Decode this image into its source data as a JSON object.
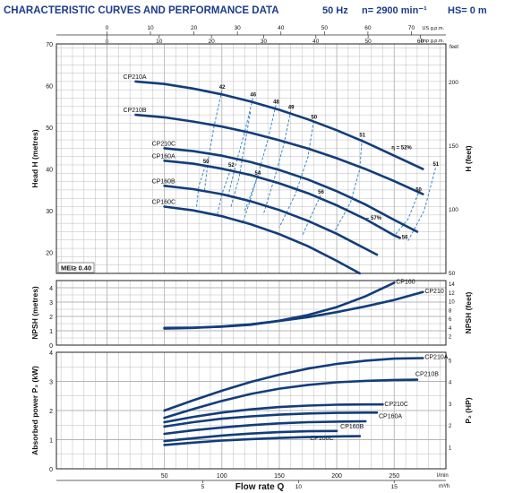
{
  "header": {
    "title": "CHARACTERISTIC CURVES AND PERFORMANCE DATA",
    "freq": "50 Hz",
    "speed": "n= 2900 min⁻¹",
    "hs": "HS= 0 m"
  },
  "colors": {
    "curve": "#123d7a",
    "eff": "#3a86c8",
    "grid": "#b5b5b5",
    "title": "#1d3c8a"
  },
  "top_scales": {
    "us_label": "US g.p.m.",
    "us_ticks": [
      "0",
      "10",
      "20",
      "30",
      "40",
      "50",
      "60",
      "70"
    ],
    "imp_label": "Imp g.p.m.",
    "imp_ticks": [
      "0",
      "10",
      "20",
      "30",
      "40",
      "50",
      "60"
    ]
  },
  "bottom_scales": {
    "lmin_label": "l/min",
    "lmin_ticks": [
      "50",
      "100",
      "150",
      "200",
      "250"
    ],
    "m3h_label": "m³/h",
    "m3h_ticks": [
      "5",
      "10",
      "15"
    ],
    "xlabel": "Flow rate Q"
  },
  "chart_data": [
    {
      "type": "line",
      "id": "head",
      "ylabel": "Head H (metres)",
      "y2label": "H (feet)",
      "ylim": [
        15,
        70
      ],
      "y_ticks": [
        20,
        30,
        40,
        50,
        60,
        70
      ],
      "y2_ticks": [
        50,
        100,
        150,
        200
      ],
      "y2_unit_label": "feet",
      "badge": "MEI≥ 0.40",
      "series": [
        {
          "name": "CP210A",
          "x": [
            25,
            50,
            75,
            100,
            125,
            150,
            175,
            200,
            225,
            250,
            275
          ],
          "y": [
            61,
            60.4,
            59.3,
            57.9,
            56.2,
            54.2,
            51.9,
            49.3,
            46.4,
            43.2,
            40
          ]
        },
        {
          "name": "CP210B",
          "x": [
            25,
            50,
            75,
            100,
            125,
            150,
            175,
            200,
            225,
            250,
            275
          ],
          "y": [
            53,
            52.4,
            51.4,
            50.2,
            48.7,
            46.9,
            44.9,
            42.6,
            40,
            37.1,
            34
          ]
        },
        {
          "name": "CP210C",
          "x": [
            50,
            75,
            100,
            125,
            150,
            175,
            200,
            225,
            250,
            270
          ],
          "y": [
            45,
            44.3,
            43.2,
            41.7,
            39.8,
            37.5,
            34.7,
            31.5,
            27.8,
            25
          ]
        },
        {
          "name": "CP160A",
          "x": [
            50,
            75,
            100,
            125,
            150,
            175,
            200,
            225,
            250,
            255
          ],
          "y": [
            42,
            41.3,
            40.1,
            38.6,
            36.6,
            34.2,
            31.3,
            28,
            24.1,
            23.5
          ]
        },
        {
          "name": "CP160B",
          "x": [
            50,
            75,
            100,
            125,
            150,
            175,
            200,
            225,
            235
          ],
          "y": [
            36,
            35.2,
            34,
            32.3,
            30.2,
            27.6,
            24.5,
            20.9,
            19.5
          ]
        },
        {
          "name": "CP160C",
          "x": [
            50,
            75,
            100,
            125,
            150,
            175,
            200,
            220
          ],
          "y": [
            31,
            30.1,
            28.7,
            26.8,
            24.4,
            21.5,
            18,
            15
          ]
        }
      ],
      "efficiency_labels": [
        {
          "text": "42",
          "x": 100,
          "y": 58.8
        },
        {
          "text": "46",
          "x": 127,
          "y": 57
        },
        {
          "text": "48",
          "x": 147,
          "y": 55.3
        },
        {
          "text": "49",
          "x": 160,
          "y": 54
        },
        {
          "text": "50",
          "x": 180,
          "y": 51.6
        },
        {
          "text": "51",
          "x": 222,
          "y": 47.3
        },
        {
          "text": "η = 52%",
          "x": 250,
          "y": 44.3
        },
        {
          "text": "51",
          "x": 286,
          "y": 40.3
        },
        {
          "text": "50",
          "x": 271,
          "y": 34.2
        },
        {
          "text": "50",
          "x": 86,
          "y": 41
        },
        {
          "text": "52",
          "x": 108,
          "y": 40.1
        },
        {
          "text": "54",
          "x": 131,
          "y": 38.2
        },
        {
          "text": "56",
          "x": 186,
          "y": 33.7
        },
        {
          "text": "– 57%",
          "x": 228,
          "y": 27.5
        },
        {
          "text": "56",
          "x": 259,
          "y": 22.8
        }
      ]
    },
    {
      "type": "line",
      "id": "npsh",
      "ylabel": "NPSH (metres)",
      "y2label": "NPSH (feet)",
      "ylim": [
        0,
        4.5
      ],
      "y_ticks": [
        0,
        1,
        2,
        3,
        4
      ],
      "y2_ticks": [
        2,
        4,
        6,
        8,
        10,
        12,
        14
      ],
      "series": [
        {
          "name": "CP160",
          "x": [
            50,
            75,
            100,
            125,
            150,
            175,
            200,
            225,
            250
          ],
          "y": [
            1.2,
            1.22,
            1.28,
            1.42,
            1.7,
            2.1,
            2.65,
            3.4,
            4.35
          ]
        },
        {
          "name": "CP210",
          "x": [
            50,
            75,
            100,
            125,
            150,
            175,
            200,
            225,
            250,
            275
          ],
          "y": [
            1.15,
            1.2,
            1.3,
            1.45,
            1.68,
            1.95,
            2.3,
            2.7,
            3.15,
            3.7
          ]
        }
      ]
    },
    {
      "type": "line",
      "id": "power",
      "ylabel": "Absorbed power P₂ (kW)",
      "y2label": "P₂ (HP)",
      "ylim": [
        0,
        4
      ],
      "y_ticks": [
        0,
        1,
        2,
        3,
        4
      ],
      "y2_ticks": [
        1,
        2,
        3,
        4,
        5
      ],
      "series": [
        {
          "name": "CP210A",
          "x": [
            50,
            75,
            100,
            125,
            150,
            175,
            200,
            225,
            250,
            275
          ],
          "y": [
            2,
            2.35,
            2.68,
            2.98,
            3.23,
            3.44,
            3.6,
            3.71,
            3.78,
            3.8
          ]
        },
        {
          "name": "CP210B",
          "x": [
            50,
            75,
            100,
            125,
            150,
            175,
            200,
            225,
            250,
            270
          ],
          "y": [
            1.75,
            2.05,
            2.33,
            2.57,
            2.75,
            2.88,
            2.97,
            3.02,
            3.05,
            3.06
          ]
        },
        {
          "name": "CP210C",
          "x": [
            50,
            75,
            100,
            125,
            150,
            175,
            200,
            225,
            240
          ],
          "y": [
            1.6,
            1.78,
            1.93,
            2.04,
            2.12,
            2.17,
            2.2,
            2.21,
            2.21
          ]
        },
        {
          "name": "CP160A",
          "x": [
            50,
            75,
            100,
            125,
            150,
            175,
            200,
            225,
            235
          ],
          "y": [
            1.45,
            1.6,
            1.72,
            1.8,
            1.86,
            1.9,
            1.92,
            1.93,
            1.93
          ]
        },
        {
          "name": "CP160B",
          "x": [
            50,
            75,
            100,
            125,
            150,
            175,
            200,
            225
          ],
          "y": [
            1.2,
            1.32,
            1.42,
            1.5,
            1.56,
            1.6,
            1.62,
            1.63
          ]
        },
        {
          "name": "CP160C",
          "x": [
            50,
            75,
            100,
            125,
            150,
            175,
            200
          ],
          "y": [
            0.95,
            1.05,
            1.14,
            1.21,
            1.26,
            1.29,
            1.3
          ]
        },
        {
          "name": "",
          "x": [
            50,
            75,
            100,
            125,
            150,
            175,
            200,
            220
          ],
          "y": [
            0.82,
            0.9,
            0.97,
            1.02,
            1.06,
            1.09,
            1.11,
            1.12
          ]
        }
      ]
    }
  ]
}
